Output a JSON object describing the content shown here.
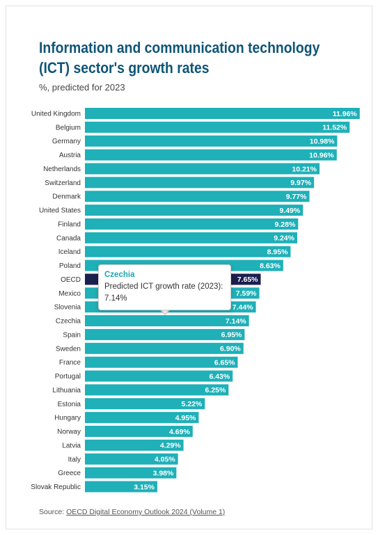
{
  "header": {
    "title": "Information and communication technology (ICT) sector's growth rates",
    "subtitle": "%, predicted for 2023"
  },
  "tooltip": {
    "country": "Czechia",
    "label": "Predicted ICT growth rate (2023):",
    "value": "7.14%"
  },
  "footer": {
    "source_prefix": "Source: ",
    "source_link": "OECD Digital Economy Outlook 2024 (Volume 1)"
  },
  "colors": {
    "bar": "#1fb0b8",
    "highlight": "#1a1f4e",
    "label_text": "#ffffff"
  },
  "chart_data": {
    "type": "bar",
    "orientation": "horizontal",
    "title": "Information and communication technology (ICT) sector's growth rates",
    "subtitle": "%, predicted for 2023",
    "unit": "%",
    "highlight": "OECD",
    "xlim": [
      0,
      12.3
    ],
    "categories": [
      "United Kingdom",
      "Belgium",
      "Germany",
      "Austria",
      "Netherlands",
      "Switzerland",
      "Denmark",
      "United States",
      "Finland",
      "Canada",
      "Iceland",
      "Poland",
      "OECD",
      "Mexico",
      "Slovenia",
      "Czechia",
      "Spain",
      "Sweden",
      "France",
      "Portugal",
      "Lithuania",
      "Estonia",
      "Hungary",
      "Norway",
      "Latvia",
      "Italy",
      "Greece",
      "Slovak Republic"
    ],
    "values": [
      11.96,
      11.52,
      10.98,
      10.96,
      10.21,
      9.97,
      9.77,
      9.49,
      9.28,
      9.24,
      8.95,
      8.63,
      7.65,
      7.59,
      7.44,
      7.14,
      6.95,
      6.9,
      6.65,
      6.43,
      6.25,
      5.22,
      4.95,
      4.69,
      4.29,
      4.05,
      3.98,
      3.15
    ]
  }
}
